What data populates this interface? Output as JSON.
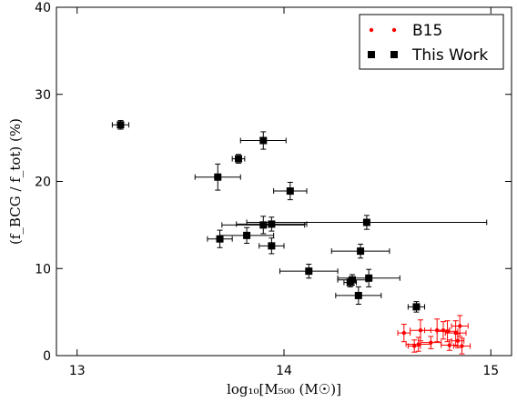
{
  "chart_data": {
    "type": "scatter",
    "title": "",
    "xlabel": "log₁₀[M₅₀₀ (M☉)]",
    "ylabel": "(f_BCG / f_tot) (%)",
    "xlim": [
      12.9,
      15.1
    ],
    "ylim": [
      0,
      40
    ],
    "x_ticks": [
      13,
      14,
      15
    ],
    "x_tick_labels": [
      "13",
      "14",
      "15"
    ],
    "y_ticks": [
      0,
      10,
      20,
      30,
      40
    ],
    "y_tick_labels": [
      "0",
      "10",
      "20",
      "30",
      "40"
    ],
    "grid": false,
    "legend": {
      "placement": "top-right",
      "entries": [
        {
          "label": "B15",
          "color": "#ff0000",
          "marker": "dot"
        },
        {
          "label": "This Work",
          "color": "#000000",
          "marker": "square"
        }
      ]
    },
    "series": [
      {
        "name": "B15",
        "color": "#ff0000",
        "marker": "dot",
        "points": [
          {
            "x": 14.58,
            "y": 2.6,
            "xerr": 0.03,
            "yerr": 1.0
          },
          {
            "x": 14.63,
            "y": 1.1,
            "xerr": 0.03,
            "yerr": 0.7
          },
          {
            "x": 14.66,
            "y": 2.9,
            "xerr": 0.05,
            "yerr": 1.2
          },
          {
            "x": 14.65,
            "y": 1.3,
            "xerr": 0.06,
            "yerr": 0.8
          },
          {
            "x": 14.71,
            "y": 1.5,
            "xerr": 0.05,
            "yerr": 0.7
          },
          {
            "x": 14.74,
            "y": 2.9,
            "xerr": 0.06,
            "yerr": 1.3
          },
          {
            "x": 14.79,
            "y": 2.8,
            "xerr": 0.05,
            "yerr": 1.2
          },
          {
            "x": 14.8,
            "y": 1.2,
            "xerr": 0.04,
            "yerr": 0.6
          },
          {
            "x": 14.83,
            "y": 2.6,
            "xerr": 0.05,
            "yerr": 1.4
          },
          {
            "x": 14.84,
            "y": 1.7,
            "xerr": 0.03,
            "yerr": 0.8
          },
          {
            "x": 14.85,
            "y": 3.4,
            "xerr": 0.04,
            "yerr": 1.2
          },
          {
            "x": 14.86,
            "y": 1.1,
            "xerr": 0.04,
            "yerr": 0.9
          },
          {
            "x": 14.77,
            "y": 2.9,
            "xerr": 0.03,
            "yerr": 1.0
          }
        ]
      },
      {
        "name": "This Work",
        "color": "#000000",
        "marker": "square",
        "points": [
          {
            "x": 13.21,
            "y": 26.5,
            "xerr": 0.04,
            "yerr": 0.5
          },
          {
            "x": 13.68,
            "y": 20.5,
            "xerr": 0.11,
            "yerr": 1.5
          },
          {
            "x": 13.78,
            "y": 22.6,
            "xerr": 0.03,
            "yerr": 0.5
          },
          {
            "x": 13.9,
            "y": 24.7,
            "xerr": 0.11,
            "yerr": 1.0
          },
          {
            "x": 14.03,
            "y": 18.9,
            "xerr": 0.08,
            "yerr": 1.0
          },
          {
            "x": 13.9,
            "y": 15.0,
            "xerr": 0.2,
            "yerr": 1.0
          },
          {
            "x": 13.94,
            "y": 15.1,
            "xerr": 0.17,
            "yerr": 0.8
          },
          {
            "x": 14.4,
            "y": 15.3,
            "xerr": 0.58,
            "yerr": 0.8
          },
          {
            "x": 13.82,
            "y": 13.8,
            "xerr": 0.13,
            "yerr": 0.9
          },
          {
            "x": 13.69,
            "y": 13.4,
            "xerr": 0.06,
            "yerr": 1.0
          },
          {
            "x": 13.94,
            "y": 12.6,
            "xerr": 0.06,
            "yerr": 0.9
          },
          {
            "x": 14.37,
            "y": 12.0,
            "xerr": 0.14,
            "yerr": 0.8
          },
          {
            "x": 14.12,
            "y": 9.7,
            "xerr": 0.14,
            "yerr": 0.8
          },
          {
            "x": 14.32,
            "y": 8.4,
            "xerr": 0.03,
            "yerr": 0.5
          },
          {
            "x": 14.33,
            "y": 8.7,
            "xerr": 0.07,
            "yerr": 0.6
          },
          {
            "x": 14.41,
            "y": 8.9,
            "xerr": 0.15,
            "yerr": 1.0
          },
          {
            "x": 14.36,
            "y": 6.9,
            "xerr": 0.11,
            "yerr": 1.0
          },
          {
            "x": 14.64,
            "y": 5.6,
            "xerr": 0.04,
            "yerr": 0.6
          }
        ]
      }
    ]
  }
}
